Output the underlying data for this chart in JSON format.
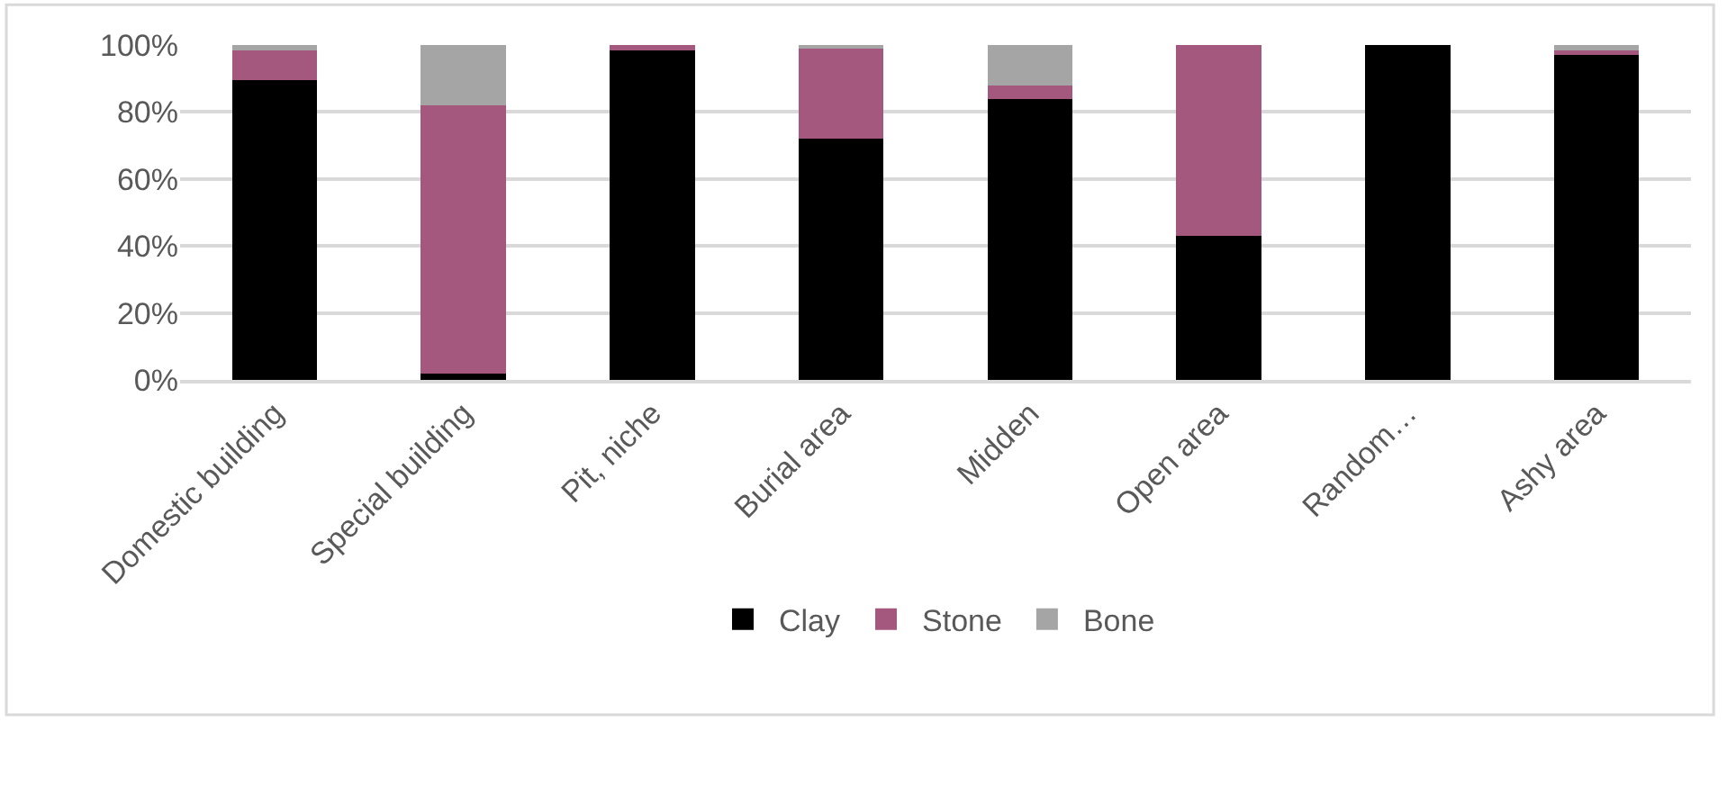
{
  "chart_data": {
    "type": "bar",
    "stacked": true,
    "categories": [
      "Domestic building",
      "Special building",
      "Pit, niche",
      "Burial area",
      "Midden",
      "Open area",
      "Random…",
      "Ashy area"
    ],
    "series": [
      {
        "name": "Clay",
        "color": "#000000",
        "values": [
          89.5,
          2,
          98.5,
          72,
          84,
          43,
          100,
          97
        ]
      },
      {
        "name": "Stone",
        "color": "#a5587d",
        "values": [
          9,
          80,
          1.5,
          27,
          4,
          57,
          0,
          1.5
        ]
      },
      {
        "name": "Bone",
        "color": "#a5a5a5",
        "values": [
          1.5,
          18,
          0,
          1,
          12,
          0,
          0,
          1.5
        ]
      }
    ],
    "ylim": [
      0,
      100
    ],
    "yticks": [
      {
        "value": 0,
        "label": "0%"
      },
      {
        "value": 20,
        "label": "20%"
      },
      {
        "value": 40,
        "label": "40%"
      },
      {
        "value": 60,
        "label": "60%"
      },
      {
        "value": 80,
        "label": "80%"
      },
      {
        "value": 100,
        "label": "100%"
      }
    ],
    "grid": "y",
    "legend": "bottom"
  }
}
